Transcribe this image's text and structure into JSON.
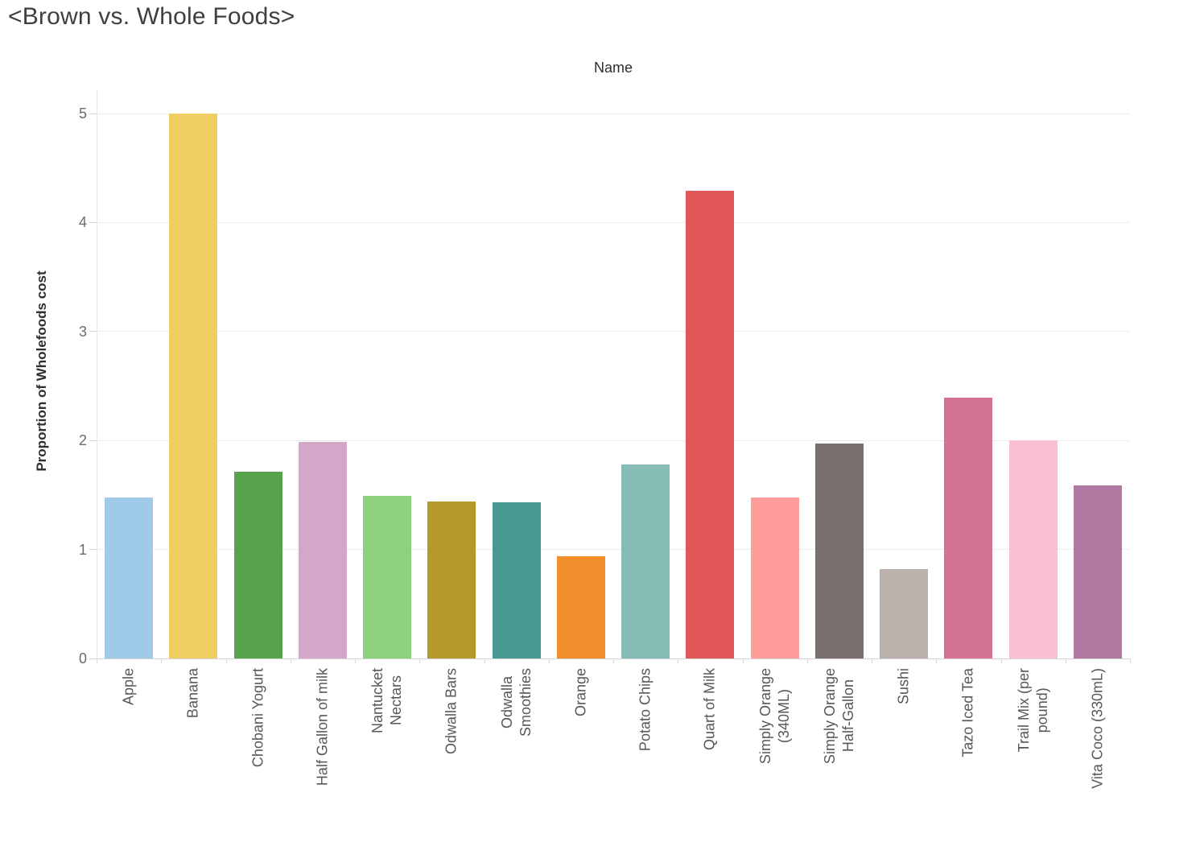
{
  "chart_data": {
    "type": "bar",
    "title": "<Brown vs. Whole Foods>",
    "column_header": "Name",
    "ylabel": "Proportion of Wholefoods cost",
    "xlabel": "",
    "ylim": [
      0,
      5
    ],
    "yticks": [
      0,
      1,
      2,
      3,
      4,
      5
    ],
    "grid": "horizontal",
    "legend": "none",
    "categories": [
      "Apple",
      "Banana",
      "Chobani Yogurt",
      "Half Gallon of milk",
      "Nantucket Nectars",
      "Odwalla Bars",
      "Odwalla Smoothies",
      "Orange",
      "Potato Chips",
      "Quart of Milk",
      "Simply Orange (340ML)",
      "Simply Orange Half-Gallon",
      "Sushi",
      "Tazo Iced Tea",
      "Trail Mix (per pound)",
      "Vita Coco (330mL)"
    ],
    "category_display_lines": [
      [
        "Apple"
      ],
      [
        "Banana"
      ],
      [
        "Chobani Yogurt"
      ],
      [
        "Half Gallon of milk"
      ],
      [
        "Nantucket",
        "Nectars"
      ],
      [
        "Odwalla Bars"
      ],
      [
        "Odwalla",
        "Smoothies"
      ],
      [
        "Orange"
      ],
      [
        "Potato Chips"
      ],
      [
        "Quart of Milk"
      ],
      [
        "Simply Orange",
        "(340ML)"
      ],
      [
        "Simply Orange",
        "Half-Gallon"
      ],
      [
        "Sushi"
      ],
      [
        "Tazo Iced Tea"
      ],
      [
        "Trail Mix (per",
        "pound)"
      ],
      [
        "Vita Coco (330mL)"
      ]
    ],
    "values": [
      1.48,
      5.0,
      1.71,
      1.99,
      1.49,
      1.44,
      1.43,
      0.94,
      1.78,
      4.29,
      1.48,
      1.97,
      0.82,
      2.39,
      2.0,
      1.59
    ],
    "colors": [
      "#a0cbe8",
      "#f1ce63",
      "#59a14f",
      "#d4a6c8",
      "#8cd17d",
      "#b6992d",
      "#499894",
      "#f28e2b",
      "#86bcb6",
      "#e15759",
      "#ff9d9a",
      "#79706e",
      "#bab0ac",
      "#d37295",
      "#fabfd2",
      "#b07aa1"
    ],
    "style": {
      "grid_color": "#ececec",
      "axis_line_color": "#d9d9d9",
      "title_color": "#3f3f3f",
      "header_color": "#2f2f33",
      "ytick_label_color": "#6b6b6b",
      "xtick_label_color": "#575757"
    }
  }
}
